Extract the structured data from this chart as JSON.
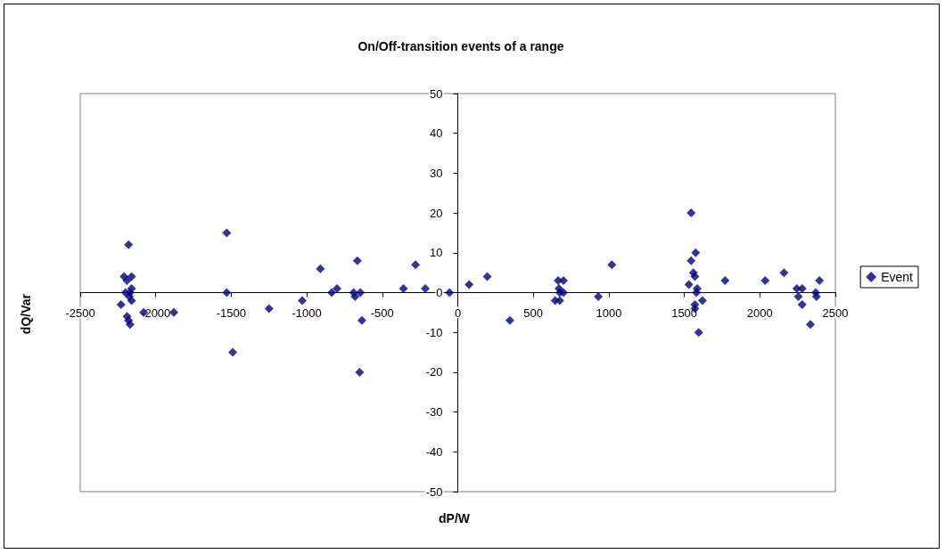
{
  "chart_data": {
    "type": "scatter",
    "title": "On/Off-transition events of a range",
    "xlabel": "dP/W",
    "ylabel": "dQ/Var",
    "xlim": [
      -2500,
      2500
    ],
    "xticks": [
      -2500,
      -2000,
      -1500,
      -1000,
      -500,
      0,
      500,
      1000,
      1500,
      2000,
      2500
    ],
    "ylim": [
      -50,
      50
    ],
    "yticks": [
      -50,
      -40,
      -30,
      -20,
      -10,
      0,
      10,
      20,
      30,
      40,
      50
    ],
    "legend": "right",
    "marker": "diamond",
    "series": [
      {
        "name": "Event",
        "color": "#000080",
        "x": [
          -2180,
          -2210,
          -2160,
          -2190,
          -2160,
          -2200,
          -2170,
          -2175,
          -2160,
          -2230,
          -2190,
          -2180,
          -2170,
          -2080,
          -1880,
          -1530,
          -1530,
          -1250,
          -1490,
          -1030,
          -910,
          -835,
          -800,
          -665,
          -690,
          -680,
          -645,
          -635,
          -650,
          -280,
          -360,
          -215,
          -55,
          75,
          195,
          345,
          665,
          700,
          670,
          675,
          700,
          645,
          675,
          930,
          1020,
          1545,
          1575,
          1545,
          1560,
          1570,
          1530,
          1585,
          1580,
          1620,
          1570,
          1570,
          1595,
          1770,
          2035,
          2160,
          2245,
          2280,
          2255,
          2280,
          2335,
          2370,
          2375,
          2395
        ],
        "values": [
          12,
          4,
          4,
          3,
          1,
          0,
          0,
          -1,
          -2,
          -3,
          -6,
          -7,
          -8,
          -5,
          -5,
          15,
          0,
          -4,
          -15,
          -2,
          6,
          0,
          1,
          8,
          0,
          -1,
          0,
          -7,
          -20,
          7,
          1,
          1,
          0,
          2,
          4,
          -7,
          3,
          3,
          1,
          0,
          0,
          -2,
          -2,
          -1,
          7,
          20,
          10,
          8,
          5,
          4,
          2,
          1,
          0,
          -2,
          -3,
          -4,
          -10,
          3,
          3,
          5,
          1,
          1,
          -1,
          -3,
          -8,
          0,
          -1,
          3
        ]
      }
    ]
  }
}
